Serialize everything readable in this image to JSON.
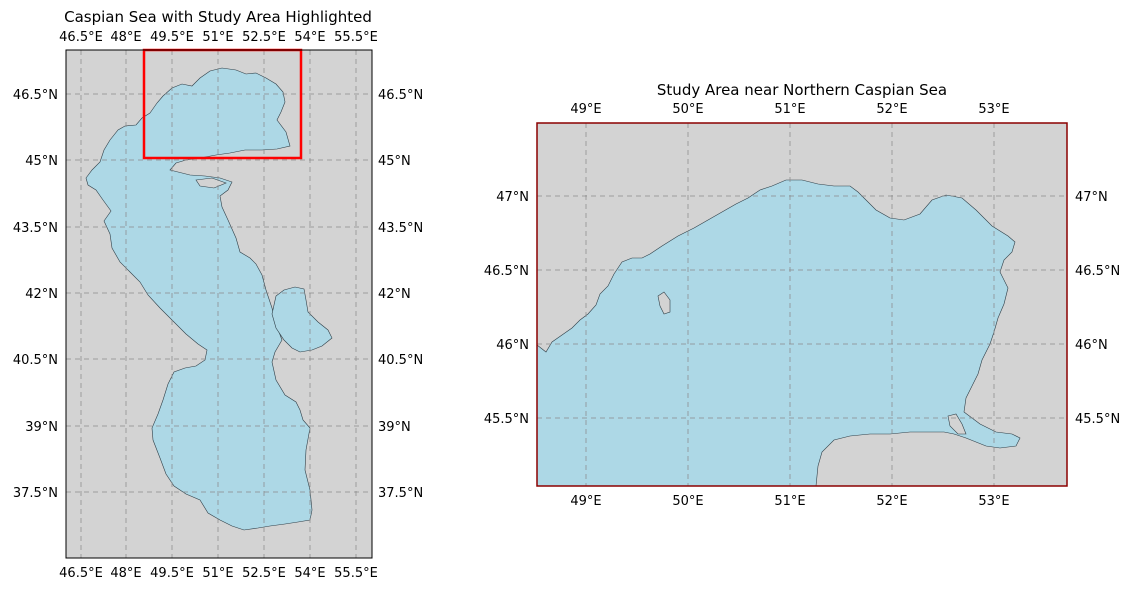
{
  "maps": [
    {
      "title": "Caspian Sea with Study Area Highlighted",
      "lon_ticks": [
        "46.5°E",
        "48°E",
        "49.5°E",
        "51°E",
        "52.5°E",
        "54°E",
        "55.5°E"
      ],
      "lat_ticks": [
        "46.5°N",
        "45°N",
        "43.5°N",
        "42°N",
        "40.5°N",
        "39°N",
        "37.5°N"
      ],
      "extent": {
        "lon": [
          46.0,
          56.0
        ],
        "lat": [
          36.0,
          47.5
        ]
      },
      "study_area_box": {
        "lon": [
          48.6,
          53.8
        ],
        "lat": [
          45.05,
          47.5
        ],
        "color": "#ff0000"
      }
    },
    {
      "title": "Study Area near Northern Caspian Sea",
      "lon_ticks": [
        "49°E",
        "50°E",
        "51°E",
        "52°E",
        "53°E"
      ],
      "lat_ticks": [
        "47°N",
        "46.5°N",
        "46°N",
        "45.5°N"
      ],
      "extent": {
        "lon": [
          48.5,
          53.7
        ],
        "lat": [
          45.05,
          47.5
        ]
      },
      "frame_color": "#8b0000"
    }
  ],
  "colors": {
    "land": "#d3d3d3",
    "water": "#add8e6",
    "grid": "#8a8a8a"
  }
}
